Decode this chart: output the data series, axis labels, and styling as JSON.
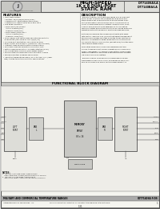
{
  "bg_color": "#e8e8e8",
  "page_color": "#f5f5f0",
  "border_color": "#555555",
  "title_lines": [
    "HIGH-SPEED",
    "1K x 8 DUAL-PORT",
    "STATIC RAM"
  ],
  "part_numbers": [
    "IDT7140SA/LA",
    "IDT7140BA/LA"
  ],
  "features_title": "FEATURES",
  "description_title": "DESCRIPTION",
  "block_diagram_title": "FUNCTIONAL BLOCK DIAGRAM",
  "footer_left": "MILITARY AND COMMERCIAL TEMPERATURE RANGES",
  "footer_right": "IDT7140SA F/DS",
  "footer_bottom_left": "Integrated Device Technology, Inc.",
  "footer_bottom_center": "For more information contact IDT or see data at the beginning of the data book.",
  "footer_bottom_page": "1.31",
  "footer_bottom_right": "1",
  "feature_lines": [
    "• High speed access",
    "  —Military: 25/35/45/55/70ns (max.)",
    "  —Commercial: 25/35/45/55/70ns (max.)",
    "  —Commercial: 85ns T7050 PLCC and TQFP",
    "• Low power operation",
    "  —IDT7140SA/IDT7140SA",
    "     Active: 850mW(typ.)",
    "     Standby: 5mW (typ.)",
    "  —IDT7140BLA/IDT7140LA",
    "     Active: 400mW(typ.)",
    "     Standby: 1mW (typ.)",
    "• FAST 7/8/9/11/12 ready responds data bus width to",
    "  16-bit mode (typ. using SLAVE 7/9/11/12)",
    "• Vcc-drop port arbitration logic (IDT7140 only)",
    "• BUSY output flag on port 1 (via BUSYL input on port)",
    "• Interrupt flags for port-to-port communication",
    "• Fully asynchronous operation from either port",
    "• Battery backup operation—10 data retention (4.0V)",
    "• TTL compatible, single 5V ±5% power supply",
    "• Military product compliant to MIL-STD-883, Class B",
    "• Standard Military Drawing 49657-8878",
    "• Industrial temperature range (-40°C to +85°C) or (lead-",
    "  free), tested to military electrical specifications"
  ],
  "desc_lines": [
    "The IDT71 Series (7140) are high speed 1k x 8 Dual-Port",
    "Static RAMs. The IDT7140 is designed to be used as a",
    "stand-alone 8-bit Dual-Port RAM or as a MASTERY Dual-",
    "Port RAM together with the IDT7140 SLAVE Dual-Port in",
    "16-bit-or-more word width systems. Using the IDT 7140,",
    "7140SA and Dual-Port RAM approach in its innovative",
    "memory system applications results in full speed error-free",
    "operation without the need for additional dependencies.",
    " ",
    "Both devices provide two independent ports with sepa-",
    "rate control, address, and I/O pins that permit independent",
    "asynchronous access for reads or writes to any location in",
    "memory. An automatic power-down feature, controlled by",
    "CE, permits the on-chip circuitry (except pins) to enter every",
    "low-standby power mode.",
    " ",
    "Fabricated using IDT's CMOS high-performance tech-",
    "nology, these devices typically operate on only 850mW of",
    "power. Low power (LA) versions offer battery backup data",
    "retention capability, with each Dual-Port typically consum-",
    "ing 700uA min in PV battery.",
    " ",
    "The IDT71 Series 7140 devices are packaged in 48-pin",
    "sidebrazed ceramic DIPs, LCCs, or leadless 52-pin PLCC,",
    "and 44-pin TQFP and STDIP. Military grade product is"
  ]
}
